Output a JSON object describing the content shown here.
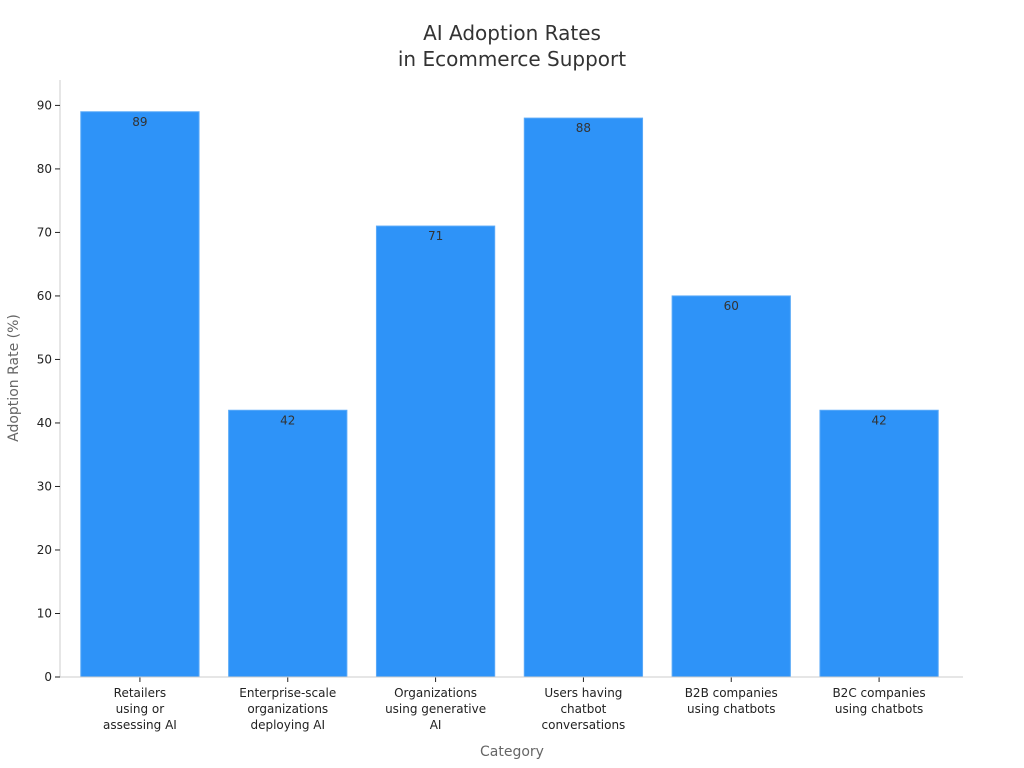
{
  "chart_data": {
    "type": "bar",
    "title_lines": [
      "AI Adoption Rates",
      "in Ecommerce Support"
    ],
    "xlabel": "Category",
    "ylabel": "Adoption Rate (%)",
    "categories": [
      [
        "Retailers",
        "using or",
        "assessing AI"
      ],
      [
        "Enterprise-scale",
        "organizations",
        "deploying AI"
      ],
      [
        "Organizations",
        "using generative",
        "AI"
      ],
      [
        "Users having",
        "chatbot",
        "conversations"
      ],
      [
        "B2B companies",
        "using chatbots"
      ],
      [
        "B2C companies",
        "using chatbots"
      ]
    ],
    "values": [
      89,
      42,
      71,
      88,
      60,
      42
    ],
    "value_labels": [
      "89",
      "42",
      "71",
      "88",
      "60",
      "42"
    ],
    "y_ticks": [
      0,
      10,
      20,
      30,
      40,
      50,
      60,
      70,
      80,
      90
    ],
    "y_tick_labels": [
      "0",
      "10",
      "20",
      "30",
      "40",
      "50",
      "60",
      "70",
      "80",
      "90"
    ],
    "ylim": [
      0,
      94
    ],
    "grid": false,
    "legend": "none",
    "colors": {
      "bar": "#2e93f8",
      "bar_edge": "#5aaaf8",
      "axis": "#cccccc",
      "text": "#333333",
      "axis_title": "#666666"
    }
  }
}
